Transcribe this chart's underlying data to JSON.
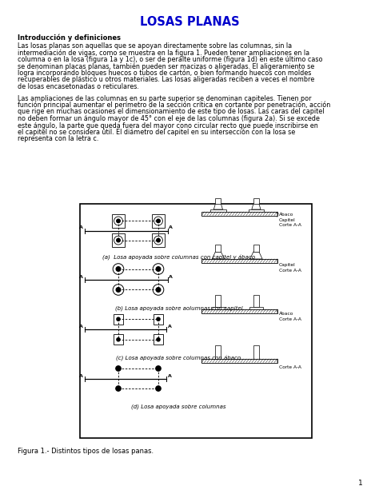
{
  "title": "LOSAS PLANAS",
  "title_color": "#0000CC",
  "title_fontsize": 10.5,
  "section_header": "Introducción y definiciones",
  "body_text_1": "Las losas planas son aquellas que se apoyan directamente sobre las columnas, sin la intermediación de vigas, como se muestra en la figura 1. Pueden tener ampliaciones en la columna o en la losa (figura 1a y 1c), o ser de peralte uniforme (figura 1d) en este último caso se denominan placas planas, también pueden ser macizas o aligeradas. El aligeramiento se logra incorporando bloques huecos o tubos de cartón, o bien formando huecos con moldes recuperables de plástico u otros materiales. Las losas aligeradas reciben a veces el nombre de losas encasetonadas o reticulares.",
  "body_text_2": "Las ampliaciones de las columnas en su parte superior se denominan capiteles. Tienen por función principal aumentar el perímetro de la sección crítica en cortante por penetración, acción que rige en muchas ocasiones el dimensionamiento de este tipo de losas. Las caras del capitel no deben formar un ángulo mayor de 45° con el eje de las columnas (figura 2a). Si se excede este ángulo, la parte que queda fuera del mayor cono circular recto que puede inscribirse en el capitel no se considera útil. El diámetro del capitel en su intersección con la losa se representa con la letra c.",
  "figure_caption": "Figura 1.- Distintos tipos de losas panas.",
  "page_number": "1",
  "bg_color": "#ffffff",
  "text_color": "#000000",
  "fig_labels": [
    "(a)  Losa apoyada sobre columnas con capitel y ábaco",
    "(b) Losa apoyada sobre aolumnas con capitel",
    "(c) Losa apoyada sobre columnas con ábaco",
    "(d) Losa apoyada sobre columnas"
  ]
}
